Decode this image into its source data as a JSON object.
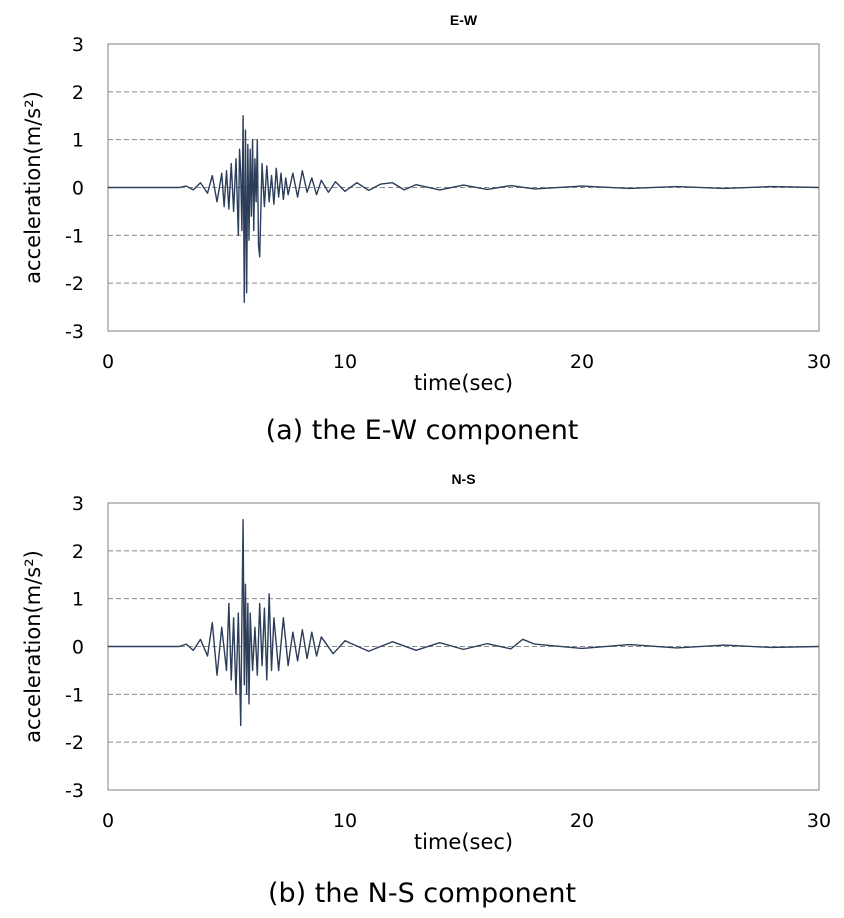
{
  "captions": {
    "ew": "(a) the E-W component",
    "ns": "(b) the N-S component"
  },
  "chart_data": [
    {
      "type": "line",
      "title": "E-W",
      "xlabel": "time(sec)",
      "ylabel": "acceleration(m/s²)",
      "xlim": [
        0,
        30
      ],
      "ylim": [
        -3,
        3
      ],
      "xticks": [
        0,
        10,
        20,
        30
      ],
      "yticks": [
        3,
        2,
        1,
        0,
        -1,
        -2,
        -3
      ],
      "grid": "horizontal dashed",
      "legend": "none",
      "line_color": "#2c3e5a",
      "series": [
        {
          "x": [
            0,
            3.0,
            3.3,
            3.6,
            3.9,
            4.2,
            4.4,
            4.6,
            4.8,
            4.9,
            5.0,
            5.1,
            5.2,
            5.3,
            5.4,
            5.5,
            5.55,
            5.6,
            5.65,
            5.7,
            5.75,
            5.8,
            5.85,
            5.9,
            5.95,
            6.0,
            6.05,
            6.1,
            6.15,
            6.2,
            6.25,
            6.3,
            6.35,
            6.4,
            6.5,
            6.6,
            6.7,
            6.8,
            6.9,
            7.0,
            7.1,
            7.2,
            7.3,
            7.4,
            7.5,
            7.6,
            7.8,
            8.0,
            8.2,
            8.4,
            8.6,
            8.8,
            9.0,
            9.3,
            9.6,
            10.0,
            10.5,
            11.0,
            11.5,
            12.0,
            12.5,
            13.0,
            14.0,
            15.0,
            16.0,
            17.0,
            18.0,
            20.0,
            22.0,
            24.0,
            26.0,
            28.0,
            30.0
          ],
          "y": [
            0,
            0,
            0.03,
            -0.05,
            0.1,
            -0.12,
            0.25,
            -0.3,
            0.3,
            -0.4,
            0.35,
            -0.45,
            0.5,
            -0.5,
            0.6,
            -1.0,
            0.8,
            0.3,
            -0.9,
            1.5,
            -2.4,
            1.2,
            -2.2,
            0.9,
            -1.1,
            0.8,
            -0.6,
            1.0,
            -0.9,
            0.6,
            -0.3,
            1.0,
            -1.2,
            -1.45,
            0.5,
            -0.4,
            0.45,
            -0.3,
            0.25,
            -0.35,
            0.4,
            -0.2,
            0.3,
            -0.25,
            0.2,
            -0.15,
            0.3,
            -0.2,
            0.35,
            -0.1,
            0.2,
            -0.15,
            0.15,
            -0.1,
            0.12,
            -0.08,
            0.1,
            -0.06,
            0.07,
            0.1,
            -0.05,
            0.06,
            -0.05,
            0.05,
            -0.04,
            0.04,
            -0.03,
            0.03,
            -0.02,
            0.02,
            -0.02,
            0.02,
            0
          ]
        }
      ]
    },
    {
      "type": "line",
      "title": "N-S",
      "xlabel": "time(sec)",
      "ylabel": "acceleration(m/s²)",
      "xlim": [
        0,
        30
      ],
      "ylim": [
        -3,
        3
      ],
      "xticks": [
        0,
        10,
        20,
        30
      ],
      "yticks": [
        3,
        2,
        1,
        0,
        -1,
        -2,
        -3
      ],
      "grid": "horizontal dashed",
      "legend": "none",
      "line_color": "#2c3e5a",
      "series": [
        {
          "x": [
            0,
            3.0,
            3.3,
            3.6,
            3.9,
            4.2,
            4.4,
            4.6,
            4.8,
            5.0,
            5.1,
            5.2,
            5.3,
            5.4,
            5.5,
            5.6,
            5.65,
            5.7,
            5.75,
            5.8,
            5.85,
            5.9,
            5.95,
            6.0,
            6.1,
            6.2,
            6.3,
            6.4,
            6.5,
            6.6,
            6.7,
            6.8,
            6.9,
            7.0,
            7.2,
            7.4,
            7.6,
            7.8,
            8.0,
            8.2,
            8.4,
            8.6,
            8.8,
            9.0,
            9.5,
            10.0,
            11.0,
            12.0,
            13.0,
            14.0,
            15.0,
            16.0,
            17.0,
            17.5,
            18.0,
            20.0,
            22.0,
            24.0,
            26.0,
            28.0,
            30.0
          ],
          "y": [
            0,
            0,
            0.05,
            -0.08,
            0.15,
            -0.2,
            0.5,
            -0.6,
            0.4,
            -0.5,
            0.9,
            -0.7,
            0.6,
            -1.0,
            0.7,
            -1.65,
            0.6,
            2.65,
            -0.8,
            1.3,
            -1.0,
            0.9,
            -1.2,
            0.7,
            -0.5,
            0.4,
            -0.6,
            0.9,
            -0.4,
            0.8,
            -0.7,
            1.1,
            -0.5,
            0.6,
            -0.5,
            0.6,
            -0.4,
            0.3,
            -0.3,
            0.35,
            -0.25,
            0.3,
            -0.2,
            0.2,
            -0.15,
            0.12,
            -0.1,
            0.1,
            -0.08,
            0.08,
            -0.06,
            0.06,
            -0.05,
            0.15,
            0.05,
            -0.04,
            0.04,
            -0.03,
            0.03,
            -0.02,
            0
          ]
        }
      ]
    }
  ]
}
